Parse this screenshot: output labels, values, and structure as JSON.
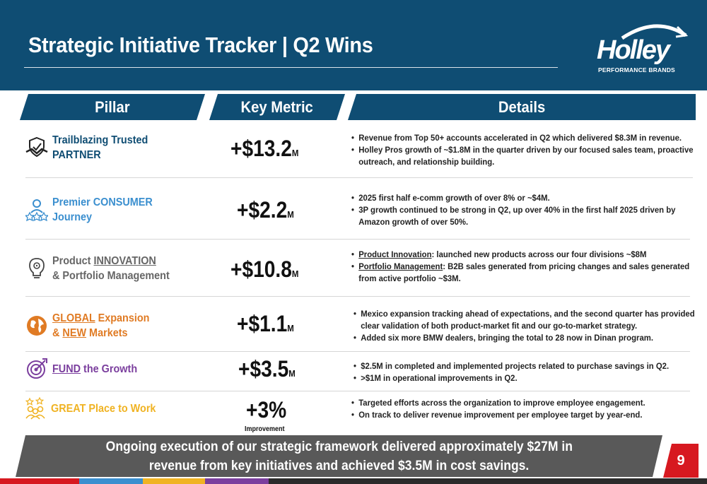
{
  "header": {
    "title": "Strategic Initiative Tracker | Q2 Wins",
    "logo": {
      "name": "Holley",
      "tagline": "PERFORMANCE BRANDS"
    }
  },
  "columns": {
    "pillar": "Pillar",
    "metric": "Key Metric",
    "details": "Details"
  },
  "rows": [
    {
      "icon": "handshake-shield-icon",
      "color": "#0f4d73",
      "label_line1": "Trailblazing Trusted",
      "label_line2": "PARTNER",
      "metric": "+$13.2",
      "unit": "M",
      "details": [
        "Revenue from Top 50+ accounts accelerated in Q2 which delivered $8.3M in revenue.",
        "Holley Pros growth of ~$1.8M in the quarter driven by our focused sales team, proactive outreach, and relationship building."
      ]
    },
    {
      "icon": "consumer-stars-icon",
      "color": "#3b8fcf",
      "label_line1": "Premier CONSUMER",
      "label_line2": "Journey",
      "metric": "+$2.2",
      "unit": "M",
      "details": [
        "2025 first half e-comm growth of over 8% or ~$4M.",
        "3P growth continued to be strong in Q2, up over 40% in the first half 2025 driven by Amazon growth of over 50%."
      ]
    },
    {
      "icon": "lightbulb-gear-icon",
      "color": "#666666",
      "label_pre": "Product ",
      "label_u": "INNOVATION",
      "label_line2": "& Portfolio Management",
      "metric": "+$10.8",
      "unit": "M",
      "details": [
        {
          "u": "Product Innovation",
          "rest": ": launched new products across our four divisions ~$8M"
        },
        {
          "u": "Portfolio Management",
          "rest": ": B2B sales generated from pricing changes and sales generated from active portfolio ~$3M."
        }
      ]
    },
    {
      "icon": "globe-icon",
      "color": "#e07b24",
      "label_u": "GLOBAL",
      "label_post": " Expansion",
      "label_pre2": "& ",
      "label_u2": "NEW",
      "label_post2": " Markets",
      "metric": "+$1.1",
      "unit": "M",
      "details": [
        "Mexico expansion tracking ahead of expectations, and the second quarter has provided clear validation of both product-market fit and our go-to-market strategy.",
        "Added six more BMW dealers, bringing the total to 28 now in Dinan program."
      ]
    },
    {
      "icon": "target-icon",
      "color": "#7b3f9e",
      "label_u": "FUND",
      "label_post": " the Growth",
      "metric": "+$3.5",
      "unit": "M",
      "details": [
        "$2.5M in completed and implemented projects related to purchase savings in Q2.",
        " >$1M in operational improvements in Q2."
      ]
    },
    {
      "icon": "team-stars-icon",
      "color": "#f0b323",
      "label_line1": "GREAT Place to Work",
      "metric": "+3%",
      "metric_sub": "Improvement",
      "details": [
        "Targeted efforts across the organization to improve employee engagement.",
        "On track to deliver revenue improvement per employee target by year-end."
      ]
    }
  ],
  "footer": {
    "line1": "Ongoing execution of our strategic framework delivered approximately $27M in",
    "line2": "revenue from key initiatives and achieved $3.5M in cost savings.",
    "page": "9"
  },
  "accent_colors": [
    "#d71920",
    "#3b8fcf",
    "#f0b323",
    "#7b3f9e",
    "#0f4d73",
    "#595959"
  ]
}
